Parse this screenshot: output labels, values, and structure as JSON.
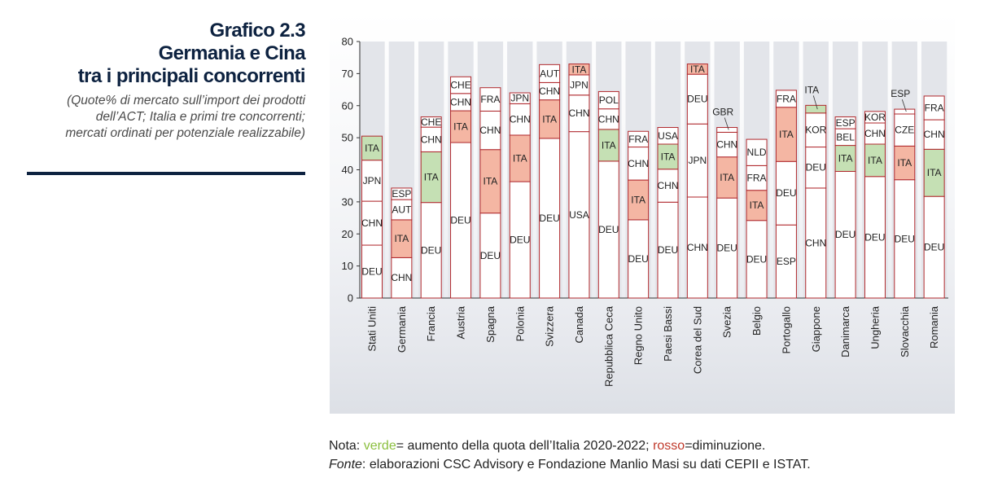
{
  "title": {
    "line1": "Grafico 2.3",
    "line2": "Germania e Cina",
    "line3": "tra i principali concorrenti"
  },
  "subtitle": {
    "line1": "(Quote% di mercato sull’import dei prodotti",
    "line2": "dell’ACT; Italia e primi tre concorrenti;",
    "line3": "mercati ordinati per potenziale realizzabile)"
  },
  "notes": {
    "nota_prefix": "Nota: ",
    "verde": "verde",
    "nota_mid": "= aumento della quota dell’Italia 2020-2022; ",
    "rosso": "rosso",
    "nota_end": "=diminuzione.",
    "fonte_label": "Fonte",
    "fonte_text": ": elaborazioni CSC Advisory e Fondazione Manlio Masi su dati CEPII e ISTAT."
  },
  "colors": {
    "frame": "#b0282d",
    "ita_up": "#c5e0b4",
    "ita_down": "#f4b6a3",
    "other": "#ffffff",
    "column_band": "#e3e5ea",
    "axis": "#333333"
  },
  "chart_data": {
    "type": "bar",
    "stacked": true,
    "ylim": [
      0,
      80
    ],
    "yticks": [
      0,
      10,
      20,
      30,
      40,
      50,
      60,
      70,
      80
    ],
    "categories": [
      "Stati Uniti",
      "Germania",
      "Francia",
      "Austria",
      "Spagna",
      "Polonia",
      "Svizzera",
      "Canada",
      "Repubblica Ceca",
      "Regno Unito",
      "Paesi Bassi",
      "Corea del Sud",
      "Svezia",
      "Belgio",
      "Portogallo",
      "Giappone",
      "Danimarca",
      "Ungheria",
      "Slovacchia",
      "Romania"
    ],
    "ita_trend": [
      "up",
      "down",
      "up",
      "down",
      "down",
      "down",
      "down",
      "down",
      "up",
      "down",
      "up",
      "down",
      "down",
      "down",
      "down",
      "up",
      "up",
      "up",
      "down",
      "up"
    ],
    "stacks": [
      [
        {
          "label": "DEU",
          "value": 16.5
        },
        {
          "label": "CHN",
          "value": 13.7
        },
        {
          "label": "JPN",
          "value": 12.8
        },
        {
          "label": "ITA",
          "value": 7.5
        }
      ],
      [
        {
          "label": "CHN",
          "value": 12.6
        },
        {
          "label": "ITA",
          "value": 11.8
        },
        {
          "label": "AUT",
          "value": 6.3
        },
        {
          "label": "ESP",
          "value": 3.6
        }
      ],
      [
        {
          "label": "DEU",
          "value": 29.8
        },
        {
          "label": "ITA",
          "value": 15.8
        },
        {
          "label": "CHN",
          "value": 7.7
        },
        {
          "label": "CHE",
          "value": 3.2
        }
      ],
      [
        {
          "label": "DEU",
          "value": 48.5
        },
        {
          "label": "ITA",
          "value": 9.9
        },
        {
          "label": "CHN",
          "value": 5.4
        },
        {
          "label": "CHE",
          "value": 5.2
        }
      ],
      [
        {
          "label": "DEU",
          "value": 26.5
        },
        {
          "label": "ITA",
          "value": 19.8
        },
        {
          "label": "CHN",
          "value": 12
        },
        {
          "label": "FRA",
          "value": 7.3
        }
      ],
      [
        {
          "label": "DEU",
          "value": 36.3
        },
        {
          "label": "ITA",
          "value": 14.5
        },
        {
          "label": "CHN",
          "value": 9.8
        },
        {
          "label": "JPN",
          "value": 3.4
        }
      ],
      [
        {
          "label": "DEU",
          "value": 49.8
        },
        {
          "label": "ITA",
          "value": 12
        },
        {
          "label": "CHN",
          "value": 5.4
        },
        {
          "label": "AUT",
          "value": 5.6
        }
      ],
      [
        {
          "label": "USA",
          "value": 51.9
        },
        {
          "label": "CHN",
          "value": 11.4
        },
        {
          "label": "JPN",
          "value": 6.3
        },
        {
          "label": "ITA",
          "value": 3.4
        }
      ],
      [
        {
          "label": "DEU",
          "value": 42.7
        },
        {
          "label": "ITA",
          "value": 9.9
        },
        {
          "label": "CHN",
          "value": 6.4
        },
        {
          "label": "POL",
          "value": 5.4
        }
      ],
      [
        {
          "label": "DEU",
          "value": 24.4
        },
        {
          "label": "ITA",
          "value": 12.4
        },
        {
          "label": "CHN",
          "value": 10.3
        },
        {
          "label": "FRA",
          "value": 4.9
        }
      ],
      [
        {
          "label": "DEU",
          "value": 29.9
        },
        {
          "label": "CHN",
          "value": 10.3
        },
        {
          "label": "ITA",
          "value": 7.8
        },
        {
          "label": "USA",
          "value": 5.2
        }
      ],
      [
        {
          "label": "CHN",
          "value": 31.5
        },
        {
          "label": "JPN",
          "value": 22.8
        },
        {
          "label": "DEU",
          "value": 15.5
        },
        {
          "label": "ITA",
          "value": 3.2
        }
      ],
      [
        {
          "label": "DEU",
          "value": 31.2
        },
        {
          "label": "ITA",
          "value": 12.8
        },
        {
          "label": "CHN",
          "value": 7.7
        },
        {
          "label": "GBR",
          "value": 1.5
        }
      ],
      [
        {
          "label": "DEU",
          "value": 24.2
        },
        {
          "label": "ITA",
          "value": 9.4
        },
        {
          "label": "FRA",
          "value": 7.7
        },
        {
          "label": "NLD",
          "value": 8.2
        }
      ],
      [
        {
          "label": "ESP",
          "value": 22.8
        },
        {
          "label": "DEU",
          "value": 19.8
        },
        {
          "label": "ITA",
          "value": 16.9
        },
        {
          "label": "FRA",
          "value": 5.3
        }
      ],
      [
        {
          "label": "CHN",
          "value": 34.3
        },
        {
          "label": "DEU",
          "value": 12.8
        },
        {
          "label": "KOR",
          "value": 10.6
        },
        {
          "label": "ITA",
          "value": 2.4
        }
      ],
      [
        {
          "label": "DEU",
          "value": 39.5
        },
        {
          "label": "ITA",
          "value": 8.1
        },
        {
          "label": "BEL",
          "value": 5.2
        },
        {
          "label": "ESP",
          "value": 3.7
        }
      ],
      [
        {
          "label": "DEU",
          "value": 37.9
        },
        {
          "label": "ITA",
          "value": 10.1
        },
        {
          "label": "CHN",
          "value": 6.6
        },
        {
          "label": "KOR",
          "value": 3.6
        }
      ],
      [
        {
          "label": "DEU",
          "value": 36.9
        },
        {
          "label": "ITA",
          "value": 10.5
        },
        {
          "label": "CZE",
          "value": 10
        },
        {
          "label": "ESP",
          "value": 1.5
        }
      ],
      [
        {
          "label": "DEU",
          "value": 31.7
        },
        {
          "label": "ITA",
          "value": 14.7
        },
        {
          "label": "CHN",
          "value": 9.2
        },
        {
          "label": "FRA",
          "value": 7.4
        }
      ]
    ]
  }
}
